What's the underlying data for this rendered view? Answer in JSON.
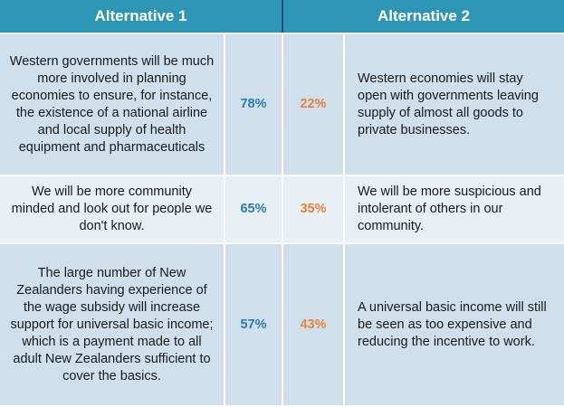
{
  "header": {
    "alt1": "Alternative 1",
    "alt2": "Alternative 2"
  },
  "rows": [
    {
      "alt1_text": "Western governments will be much more involved in planning economies to ensure, for instance, the existence of a national airline and local supply of health equipment and pharmaceuticals",
      "alt1_pct": "78%",
      "alt2_pct": "22%",
      "alt2_text": "Western economies will stay open with governments leaving supply of almost all goods to private businesses."
    },
    {
      "alt1_text": "We will be more community minded and look out for people we don't know.",
      "alt1_pct": "65%",
      "alt2_pct": "35%",
      "alt2_text": "We will be more suspicious and intolerant of others in our community."
    },
    {
      "alt1_text": "The large number of New Zealanders having experience of the wage subsidy will increase support for universal basic income; which is a payment made to all adult New Zealanders sufficient to cover the basics.",
      "alt1_pct": "57%",
      "alt2_pct": "43%",
      "alt2_text": "A universal basic income will still be seen as too expensive and reducing the incentive to work."
    }
  ],
  "colors": {
    "header_bg": "#2E96B5",
    "alt1_pct": "#2C7BAE",
    "alt2_pct": "#E8823B",
    "row_dark": "#CFE0EC",
    "row_light": "#E8F0F6"
  }
}
